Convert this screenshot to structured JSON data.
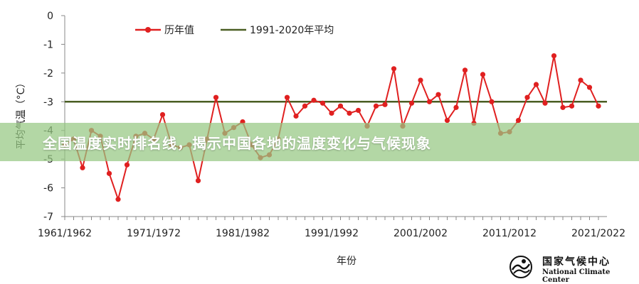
{
  "banner": {
    "text": "全国温度实时排名线，揭示中国各地的温度变化与气候现象"
  },
  "logo": {
    "name_cn": "国家气候中心",
    "name_en": "National Climate Center"
  },
  "chart_data": {
    "type": "line",
    "title": "",
    "xlabel": "年份",
    "ylabel": "平均气温（°C）",
    "ylim": [
      -7,
      0
    ],
    "yticks": [
      0,
      -1,
      -2,
      -3,
      -4,
      -5,
      -6,
      -7
    ],
    "xtick_labels": [
      "1961/1962",
      "1971/1972",
      "1981/1982",
      "1991/1992",
      "2001/2002",
      "2011/2012",
      "2021/2022"
    ],
    "legend_position": "top",
    "series": [
      {
        "name": "历年值",
        "color": "#e02020",
        "x": [
          1961,
          1962,
          1963,
          1964,
          1965,
          1966,
          1967,
          1968,
          1969,
          1970,
          1971,
          1972,
          1973,
          1974,
          1975,
          1976,
          1977,
          1978,
          1979,
          1980,
          1981,
          1982,
          1983,
          1984,
          1985,
          1986,
          1987,
          1988,
          1989,
          1990,
          1991,
          1992,
          1993,
          1994,
          1995,
          1996,
          1997,
          1998,
          1999,
          2000,
          2001,
          2002,
          2003,
          2004,
          2005,
          2006,
          2007,
          2008,
          2009,
          2010,
          2011,
          2012,
          2013,
          2014,
          2015,
          2016,
          2017,
          2018,
          2019,
          2020,
          2021
        ],
        "y": [
          -4.5,
          -4.3,
          -5.3,
          -4.0,
          -4.2,
          -5.5,
          -6.4,
          -5.2,
          -4.2,
          -4.1,
          -4.3,
          -3.45,
          -4.5,
          -4.6,
          -4.5,
          -5.75,
          -4.3,
          -2.85,
          -4.1,
          -3.9,
          -3.7,
          -4.5,
          -4.95,
          -4.85,
          -4.3,
          -2.85,
          -3.5,
          -3.15,
          -2.95,
          -3.05,
          -3.4,
          -3.15,
          -3.4,
          -3.3,
          -3.85,
          -3.15,
          -3.1,
          -1.85,
          -3.85,
          -3.05,
          -2.25,
          -3.0,
          -2.75,
          -3.65,
          -3.2,
          -1.9,
          -3.75,
          -2.05,
          -3.0,
          -4.1,
          -4.05,
          -3.65,
          -2.85,
          -2.4,
          -3.05,
          -1.4,
          -3.2,
          -3.15,
          -2.25,
          -2.5,
          -3.15
        ]
      },
      {
        "name": "1991-2020年平均",
        "color": "#4a5e23",
        "x": [
          1961,
          2021
        ],
        "y": [
          -3.0,
          -3.0
        ]
      }
    ]
  }
}
